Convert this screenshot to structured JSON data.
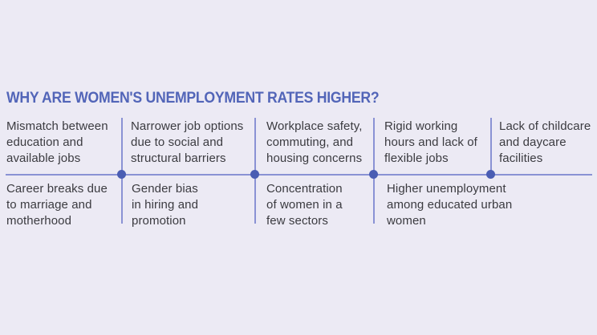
{
  "title": "WHY ARE WOMEN'S UNEMPLOYMENT RATES HIGHER?",
  "colors": {
    "background": "#ECEAF4",
    "title": "#5265B8",
    "connector_line": "#8A92D4",
    "connector_dot": "#4A5DB3",
    "body_text": "#3B3B40"
  },
  "top_reasons": [
    "Mismatch between\neducation and\navailable jobs",
    "Narrower job options\ndue to social and\nstructural barriers",
    "Workplace safety,\ncommuting, and\nhousing concerns",
    "Rigid working\nhours and lack of\nflexible jobs",
    "Lack of childcare\nand daycare\nfacilities"
  ],
  "bottom_reasons": [
    "Career breaks due\nto marriage and\nmotherhood",
    "Gender bias\nin hiring and\npromotion",
    "Concentration\nof women in a\nfew sectors",
    "Higher unemployment\namong educated urban\nwomen"
  ]
}
